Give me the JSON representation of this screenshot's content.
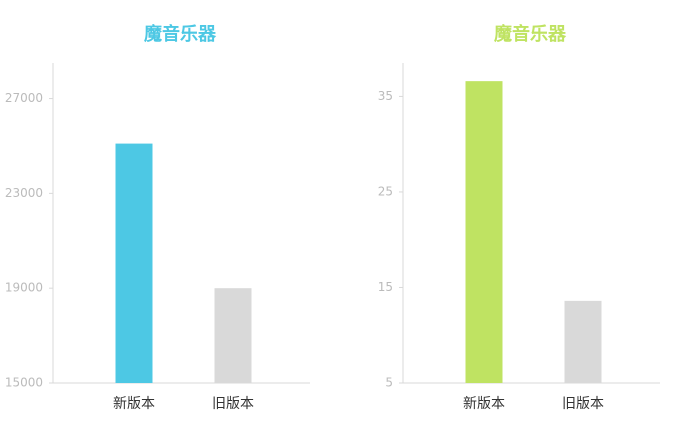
{
  "chart_data": [
    {
      "type": "bar",
      "title": "魔音乐器",
      "title_color": "#4dc8e4",
      "categories": [
        "新版本",
        "旧版本"
      ],
      "values": [
        25100,
        19000
      ],
      "colors": [
        "#4dc8e4",
        "#d9d9d9"
      ],
      "ylim": [
        15000,
        28500
      ],
      "yticks": [
        15000,
        19000,
        23000,
        27000
      ]
    },
    {
      "type": "bar",
      "title": "魔音乐器",
      "title_color": "#bfe362",
      "categories": [
        "新版本",
        "旧版本"
      ],
      "values": [
        36.6,
        13.6
      ],
      "colors": [
        "#bfe362",
        "#d9d9d9"
      ],
      "ylim": [
        5,
        38.5
      ],
      "yticks": [
        5,
        15,
        25,
        35
      ]
    }
  ]
}
